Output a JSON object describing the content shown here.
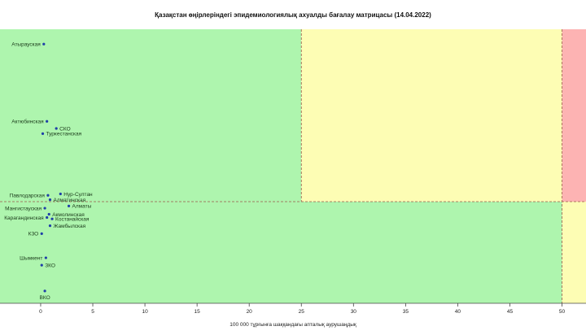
{
  "chart_data": {
    "type": "scatter",
    "title": "Қазақстан өңірлеріндегі эпидемиологиялық ахуалды бағалау матрицасы  (14.04.2022)",
    "xlabel": "100 000 тұрғынға шаққандағы апталық аурушаңдық",
    "ylabel": "",
    "xlim": [
      -3.9,
      52.3
    ],
    "ylim": [
      0,
      1
    ],
    "x_ticks": [
      0,
      5,
      10,
      15,
      20,
      25,
      30,
      35,
      40,
      45,
      50
    ],
    "threshold_lines_x": [
      25,
      50
    ],
    "threshold_line_y": 0.371,
    "zone_colors": {
      "green": "#aef5ae",
      "yellow": "#fdfdb4",
      "red": "#fdb3b3"
    },
    "point_color": "#1f3fa8",
    "points": [
      {
        "name": "Атырауская",
        "x": 0.3,
        "y": 0.946,
        "label_side": "left"
      },
      {
        "name": "Актюбинская",
        "x": 0.6,
        "y": 0.664,
        "label_side": "left"
      },
      {
        "name": "СКО",
        "x": 1.5,
        "y": 0.638,
        "label_side": "right"
      },
      {
        "name": "Туркестанская",
        "x": 0.2,
        "y": 0.619,
        "label_side": "right"
      },
      {
        "name": "Нур-Султан",
        "x": 1.9,
        "y": 0.399,
        "label_side": "right"
      },
      {
        "name": "Павлодарская",
        "x": 0.7,
        "y": 0.394,
        "label_side": "left"
      },
      {
        "name": "Алматинская",
        "x": 0.9,
        "y": 0.378,
        "label_side": "right"
      },
      {
        "name": "Алматы",
        "x": 2.7,
        "y": 0.355,
        "label_side": "right"
      },
      {
        "name": "Мангистауская",
        "x": 0.4,
        "y": 0.347,
        "label_side": "left"
      },
      {
        "name": "Акмолинская",
        "x": 0.8,
        "y": 0.325,
        "label_side": "right"
      },
      {
        "name": "Карагандинская",
        "x": 0.6,
        "y": 0.313,
        "label_side": "left"
      },
      {
        "name": "Костанайская",
        "x": 1.1,
        "y": 0.308,
        "label_side": "right"
      },
      {
        "name": "Жамбылская",
        "x": 0.9,
        "y": 0.283,
        "label_side": "right"
      },
      {
        "name": "КЗО",
        "x": 0.1,
        "y": 0.254,
        "label_side": "left"
      },
      {
        "name": "Шымкент",
        "x": 0.5,
        "y": 0.166,
        "label_side": "left"
      },
      {
        "name": "ЗКО",
        "x": 0.1,
        "y": 0.139,
        "label_side": "right"
      },
      {
        "name": "ВКО",
        "x": 0.4,
        "y": 0.045,
        "label_side": "below"
      }
    ]
  }
}
